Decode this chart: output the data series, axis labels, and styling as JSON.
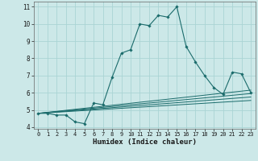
{
  "xlabel": "Humidex (Indice chaleur)",
  "bg_color": "#cce8e8",
  "grid_color": "#aad4d4",
  "line_color": "#1a6b6b",
  "marker_color": "#1a6b6b",
  "x_main": [
    0,
    1,
    2,
    3,
    4,
    5,
    6,
    7,
    8,
    9,
    10,
    11,
    12,
    13,
    14,
    15,
    16,
    17,
    18,
    19,
    20,
    21,
    22,
    23
  ],
  "y_main": [
    4.8,
    4.8,
    4.7,
    4.7,
    4.3,
    4.2,
    5.4,
    5.3,
    6.9,
    8.3,
    8.5,
    10.0,
    9.9,
    10.5,
    10.4,
    11.0,
    8.7,
    7.8,
    7.0,
    6.3,
    5.9,
    7.2,
    7.1,
    6.0
  ],
  "ref_lines_y_start": 4.8,
  "ref_lines": [
    [
      4.8,
      5.55
    ],
    [
      4.8,
      5.75
    ],
    [
      4.8,
      5.95
    ],
    [
      4.8,
      6.15
    ]
  ],
  "ylim": [
    3.9,
    11.3
  ],
  "xlim": [
    -0.5,
    23.5
  ],
  "yticks": [
    4,
    5,
    6,
    7,
    8,
    9,
    10,
    11
  ],
  "xticks": [
    0,
    1,
    2,
    3,
    4,
    5,
    6,
    7,
    8,
    9,
    10,
    11,
    12,
    13,
    14,
    15,
    16,
    17,
    18,
    19,
    20,
    21,
    22,
    23
  ],
  "xlabel_fontsize": 6.5,
  "tick_fontsize_x": 5.0,
  "tick_fontsize_y": 5.5
}
